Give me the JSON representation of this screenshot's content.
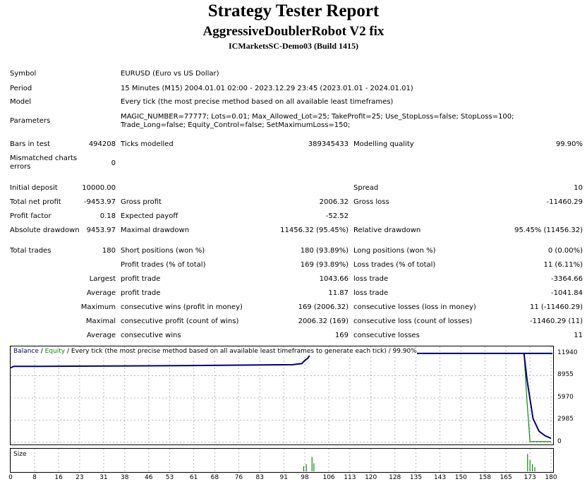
{
  "header": {
    "title": "Strategy Tester Report",
    "robot": "AggressiveDoublerRobot V2 fix",
    "server": "ICMarketsSC-Demo03 (Build 1415)"
  },
  "info": {
    "symbol_label": "Symbol",
    "symbol_value": "EURUSD (Euro vs US Dollar)",
    "period_label": "Period",
    "period_value": "15 Minutes (M15) 2004.01.01 02:00 - 2023.12.29 23:45 (2023.01.01 - 2024.01.01)",
    "model_label": "Model",
    "model_value": "Every tick (the most precise method based on all available least timeframes)",
    "params_label": "Parameters",
    "params_value": "MAGIC_NUMBER=77777; Lots=0.01; Max_Allowed_Lot=25; TakeProfit=25; Use_StopLoss=false; StopLoss=100; Trade_Long=false; Equity_Control=false; SetMaximumLoss=150;"
  },
  "stats": {
    "bars_label": "Bars in test",
    "bars_value": "494208",
    "ticks_label": "Ticks modelled",
    "ticks_value": "389345433",
    "quality_label": "Modelling quality",
    "quality_value": "99.90%",
    "mismatch_label": "Mismatched charts errors",
    "mismatch_value": "0",
    "deposit_label": "Initial deposit",
    "deposit_value": "10000.00",
    "spread_label": "Spread",
    "spread_value": "10",
    "netprofit_label": "Total net profit",
    "netprofit_value": "-9453.97",
    "grossprofit_label": "Gross profit",
    "grossprofit_value": "2006.32",
    "grossloss_label": "Gross loss",
    "grossloss_value": "-11460.29",
    "pf_label": "Profit factor",
    "pf_value": "0.18",
    "ep_label": "Expected payoff",
    "ep_value": "-52.52",
    "absdd_label": "Absolute drawdown",
    "absdd_value": "9453.97",
    "maxdd_label": "Maximal drawdown",
    "maxdd_value": "11456.32 (95.45%)",
    "reldd_label": "Relative drawdown",
    "reldd_value": "95.45% (11456.32)"
  },
  "trades": {
    "total_label": "Total trades",
    "total_value": "180",
    "short_label": "Short positions (won %)",
    "short_value": "180 (93.89%)",
    "long_label": "Long positions (won %)",
    "long_value": "0 (0.00%)",
    "profit_trades_label": "Profit trades (% of total)",
    "profit_trades_value": "169 (93.89%)",
    "loss_trades_label": "Loss trades (% of total)",
    "loss_trades_value": "11 (6.11%)",
    "largest_label": "Largest",
    "largest_profit_label": "profit trade",
    "largest_profit_value": "1043.66",
    "largest_loss_label": "loss trade",
    "largest_loss_value": "-3364.66",
    "average_label": "Average",
    "average_profit_label": "profit trade",
    "average_profit_value": "11.87",
    "average_loss_label": "loss trade",
    "average_loss_value": "-1041.84",
    "maximum_label": "Maximum",
    "max_wins_label": "consecutive wins (profit in money)",
    "max_wins_value": "169 (2006.32)",
    "max_losses_label": "consecutive losses (loss in money)",
    "max_losses_value": "11 (-11460.29)",
    "maximal_label": "Maximal",
    "maxl_profit_label": "consecutive profit (count of wins)",
    "maxl_profit_value": "2006.32 (169)",
    "maxl_loss_label": "consecutive loss (count of losses)",
    "maxl_loss_value": "-11460.29 (11)",
    "avg_label": "Average",
    "avg_wins_label": "consecutive wins",
    "avg_wins_value": "169",
    "avg_losses_label": "consecutive losses",
    "avg_losses_value": "11"
  },
  "chart_legend": {
    "balance": "Balance",
    "sep1": " / ",
    "equity": "Equity",
    "rest": " / Every tick (the most precise method based on all available least timeframes to generate each tick) / 99.90%",
    "size_label": "Size"
  },
  "chart_data": {
    "type": "line",
    "x_ticks": [
      0,
      8,
      16,
      23,
      31,
      38,
      46,
      53,
      61,
      68,
      76,
      83,
      91,
      98,
      106,
      113,
      120,
      128,
      135,
      143,
      150,
      158,
      165,
      173,
      180
    ],
    "y_ticks": [
      11940,
      8955,
      5970,
      2985,
      0
    ],
    "xlim": [
      0,
      180
    ],
    "ylim": [
      0,
      12600
    ],
    "colors": {
      "balance": "#00007f",
      "equity": "#0a8a0a",
      "size": "#0a8a0a",
      "grid": "#b8b8b8"
    },
    "series": [
      {
        "name": "Balance",
        "x": [
          0,
          1,
          10,
          20,
          40,
          60,
          80,
          94,
          97,
          98,
          99,
          100,
          180.5,
          171,
          172,
          174,
          176,
          178,
          180
        ],
        "y": [
          10000,
          10200,
          10200,
          10230,
          10270,
          10320,
          10380,
          10430,
          10580,
          11000,
          11300,
          11950,
          11950,
          11950,
          8400,
          3200,
          1500,
          900,
          540
        ]
      },
      {
        "name": "Equity",
        "x": [
          0,
          1,
          10,
          20,
          40,
          60,
          80,
          94,
          97,
          98,
          99,
          100,
          170,
          171,
          172,
          173,
          180
        ],
        "y": [
          10000,
          10200,
          10200,
          10230,
          10270,
          10320,
          10380,
          10430,
          10580,
          11000,
          11300,
          11950,
          11950,
          11950,
          5500,
          100,
          100
        ]
      }
    ],
    "size_bars": [
      {
        "x": 97.6,
        "h": 0.25
      },
      {
        "x": 98.5,
        "h": 0.35
      },
      {
        "x": 100.4,
        "h": 0.7
      },
      {
        "x": 101.0,
        "h": 0.4
      },
      {
        "x": 172.2,
        "h": 0.85
      },
      {
        "x": 173.0,
        "h": 0.55
      },
      {
        "x": 173.8,
        "h": 0.35
      },
      {
        "x": 174.6,
        "h": 0.2
      }
    ]
  }
}
